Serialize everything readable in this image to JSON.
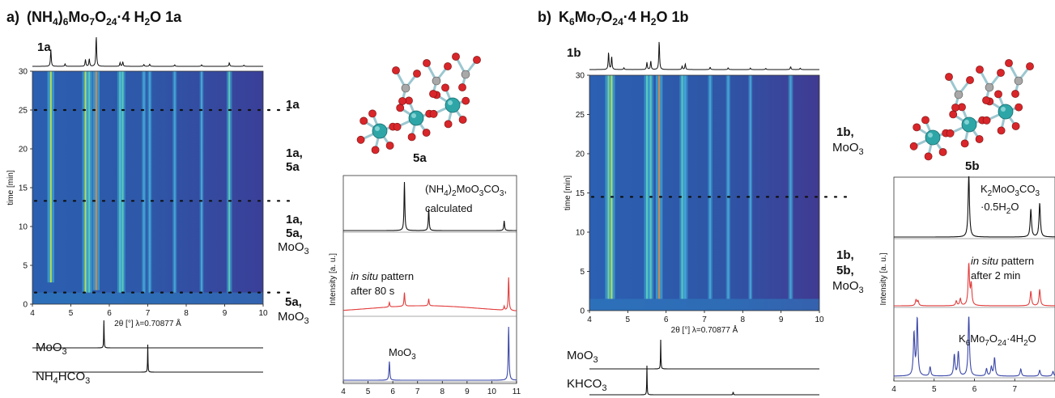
{
  "panels": [
    {
      "id": "a",
      "title_prefix": "a)",
      "title": "(NH4)6Mo7O24·4 H2O 1a",
      "top_trace_label": "1a",
      "stage_labels": [
        "1a",
        "1a, 5a",
        "1a, 5a, MoO3",
        "5a, MoO3"
      ],
      "structure_label": "5a",
      "ref_traces": [
        "MoO3",
        "NH4HCO3"
      ],
      "heatmap": {
        "xlabel": "2θ [°] λ=0.70877 Å",
        "ylabel": "time [min]",
        "xlim": [
          4,
          10
        ],
        "ylim": [
          0,
          30
        ],
        "xticks": [
          4,
          5,
          6,
          7,
          8,
          9,
          10
        ],
        "yticks": [
          0,
          5,
          10,
          15,
          20,
          25,
          30
        ],
        "stage_boundaries_min": [
          25,
          13.3,
          1.5
        ],
        "lines": [
          {
            "x": 4.48,
            "tstart": 2.8,
            "i": 1.0
          },
          {
            "x": 5.38,
            "tstart": 1.5,
            "i": 0.9
          },
          {
            "x": 5.48,
            "tstart": 1.5,
            "i": 0.75
          },
          {
            "x": 5.66,
            "tstart": 1.8,
            "i": 1.0,
            "hot": true
          },
          {
            "x": 6.28,
            "tstart": 1.5,
            "i": 0.65
          },
          {
            "x": 6.35,
            "tstart": 1.5,
            "i": 0.55
          },
          {
            "x": 6.9,
            "tstart": 1.5,
            "i": 0.3
          },
          {
            "x": 7.05,
            "tstart": 1.5,
            "i": 0.25
          },
          {
            "x": 7.7,
            "tstart": 1.5,
            "i": 0.25
          },
          {
            "x": 8.4,
            "tstart": 1.5,
            "i": 0.2
          },
          {
            "x": 9.12,
            "tstart": 1.5,
            "i": 0.6
          }
        ]
      },
      "top_trace": {
        "peaks": [
          [
            4.48,
            0.55
          ],
          [
            4.85,
            0.08
          ],
          [
            5.38,
            0.22
          ],
          [
            5.48,
            0.25
          ],
          [
            5.66,
            1.0
          ],
          [
            6.28,
            0.12
          ],
          [
            6.35,
            0.15
          ],
          [
            6.9,
            0.06
          ],
          [
            7.05,
            0.07
          ],
          [
            7.7,
            0.05
          ],
          [
            8.4,
            0.05
          ],
          [
            9.12,
            0.12
          ],
          [
            9.5,
            0.04
          ]
        ]
      },
      "ref_peaks": [
        {
          "x": 5.86,
          "h": 1.0
        },
        {
          "x": 7.0,
          "h": 1.0
        }
      ],
      "xrd": {
        "xlabel": "2θ [°]",
        "ylabel": "Intensity [a. u.]",
        "xlim": [
          4,
          11
        ],
        "xticks": [
          4,
          5,
          6,
          7,
          8,
          9,
          10,
          11
        ],
        "traces": [
          {
            "name": "(NH4)2MoO3CO3, calculated",
            "color": "#111111",
            "peaks": [
              [
                6.47,
                1.0
              ],
              [
                7.45,
                0.45
              ],
              [
                10.5,
                0.2
              ]
            ],
            "bg": "flat"
          },
          {
            "name": "in situ pattern after 80 s",
            "color": "#e23c3c",
            "peaks": [
              [
                5.86,
                0.12
              ],
              [
                6.47,
                0.35
              ],
              [
                7.45,
                0.18
              ],
              [
                10.5,
                0.1
              ],
              [
                10.68,
                0.85
              ]
            ],
            "bg": "hump"
          },
          {
            "name": "MoO3",
            "color": "#3b48a8",
            "peaks": [
              [
                5.86,
                0.35
              ],
              [
                10.68,
                1.0
              ]
            ],
            "bg": "flat"
          }
        ]
      }
    },
    {
      "id": "b",
      "title_prefix": "b)",
      "title": "K6Mo7O24·4 H2O 1b",
      "top_trace_label": "1b",
      "stage_labels": [
        "1b, MoO3",
        "1b, 5b, MoO3"
      ],
      "structure_label": "5b",
      "ref_traces": [
        "MoO3",
        "KHCO3"
      ],
      "heatmap": {
        "xlabel": "2θ [°] λ=0.70877 Å",
        "ylabel": "time [min]",
        "xlim": [
          4,
          10
        ],
        "ylim": [
          0,
          30
        ],
        "xticks": [
          4,
          5,
          6,
          7,
          8,
          9,
          10
        ],
        "yticks": [
          0,
          5,
          10,
          15,
          20,
          25,
          30
        ],
        "stage_boundaries_min": [
          14.5
        ],
        "lines": [
          {
            "x": 4.5,
            "tstart": 1.5,
            "i": 1.0
          },
          {
            "x": 4.58,
            "tstart": 1.5,
            "i": 0.95
          },
          {
            "x": 5.5,
            "tstart": 1.5,
            "i": 0.7
          },
          {
            "x": 5.6,
            "tstart": 1.5,
            "i": 0.6
          },
          {
            "x": 5.82,
            "tstart": 1.5,
            "i": 1.0,
            "hot": true
          },
          {
            "x": 6.42,
            "tstart": 1.5,
            "i": 0.55
          },
          {
            "x": 6.5,
            "tstart": 1.5,
            "i": 0.5
          },
          {
            "x": 7.15,
            "tstart": 1.5,
            "i": 0.35
          },
          {
            "x": 7.62,
            "tstart": 1.5,
            "i": 0.3
          },
          {
            "x": 8.2,
            "tstart": 1.5,
            "i": 0.2
          },
          {
            "x": 9.25,
            "tstart": 1.5,
            "i": 0.4
          }
        ]
      },
      "top_trace": {
        "peaks": [
          [
            4.5,
            0.6
          ],
          [
            4.58,
            0.45
          ],
          [
            4.9,
            0.06
          ],
          [
            5.5,
            0.25
          ],
          [
            5.6,
            0.3
          ],
          [
            5.82,
            1.0
          ],
          [
            6.42,
            0.12
          ],
          [
            6.5,
            0.2
          ],
          [
            7.15,
            0.08
          ],
          [
            7.62,
            0.06
          ],
          [
            8.2,
            0.05
          ],
          [
            8.6,
            0.04
          ],
          [
            9.25,
            0.1
          ],
          [
            9.5,
            0.05
          ]
        ]
      },
      "ref_peaks": [
        {
          "x": 5.86,
          "h": 1.0
        },
        {
          "x": 5.5,
          "h": 1.0
        },
        {
          "x": 7.75,
          "h": 0.12
        }
      ],
      "xrd": {
        "xlabel": "2θ [°]",
        "ylabel": "Intensity [a. u.]",
        "xlim": [
          4,
          8
        ],
        "xticks": [
          4,
          5,
          6,
          7
        ],
        "traces": [
          {
            "name": "K2MoO3CO3 ·0.5H2O",
            "color": "#111111",
            "peaks": [
              [
                5.86,
                1.0
              ],
              [
                7.4,
                0.45
              ],
              [
                7.62,
                0.55
              ]
            ],
            "bg": "flat"
          },
          {
            "name": "in situ pattern after 2 min",
            "color": "#e23c3c",
            "peaks": [
              [
                4.55,
                0.1
              ],
              [
                4.6,
                0.08
              ],
              [
                5.55,
                0.08
              ],
              [
                5.65,
                0.12
              ],
              [
                5.86,
                0.7
              ],
              [
                5.92,
                0.35
              ],
              [
                7.4,
                0.25
              ],
              [
                7.62,
                0.28
              ]
            ],
            "bg": "flat"
          },
          {
            "name": "K6Mo7O24·4H2O",
            "color": "#3b48a8",
            "peaks": [
              [
                4.5,
                0.7
              ],
              [
                4.58,
                0.95
              ],
              [
                4.9,
                0.15
              ],
              [
                5.5,
                0.35
              ],
              [
                5.6,
                0.4
              ],
              [
                5.86,
                1.0
              ],
              [
                6.3,
                0.12
              ],
              [
                6.42,
                0.15
              ],
              [
                6.5,
                0.3
              ],
              [
                7.15,
                0.12
              ],
              [
                7.62,
                0.1
              ],
              [
                7.95,
                0.08
              ]
            ],
            "bg": "flat"
          }
        ]
      }
    }
  ],
  "chart_data": [
    {
      "type": "heatmap",
      "title": "(NH4)6Mo7O24·4 H2O 1a",
      "xlabel": "2θ [°] λ=0.70877 Å",
      "ylabel": "time [min]",
      "xlim": [
        4,
        10
      ],
      "ylim": [
        0,
        30
      ],
      "reflection_positions_2theta": [
        4.48,
        5.38,
        5.48,
        5.66,
        6.28,
        6.35,
        6.9,
        7.05,
        7.7,
        8.4,
        9.12
      ],
      "stage_boundaries_min": [
        25,
        13.3,
        1.5
      ],
      "stages": [
        "1a",
        "1a, 5a",
        "1a, 5a, MoO3",
        "5a, MoO3"
      ]
    },
    {
      "type": "line",
      "xlabel": "2θ [°]",
      "ylabel": "Intensity [a. u.]",
      "xlim": [
        4,
        11
      ],
      "series": [
        {
          "name": "(NH4)2MoO3CO3, calculated",
          "peaks_2theta": [
            6.47,
            7.45,
            10.5
          ]
        },
        {
          "name": "in situ pattern after 80 s",
          "peaks_2theta": [
            5.86,
            6.47,
            7.45,
            10.5,
            10.68
          ]
        },
        {
          "name": "MoO3",
          "peaks_2theta": [
            5.86,
            10.68
          ]
        }
      ]
    },
    {
      "type": "heatmap",
      "title": "K6Mo7O24·4 H2O 1b",
      "xlabel": "2θ [°] λ=0.70877 Å",
      "ylabel": "time [min]",
      "xlim": [
        4,
        10
      ],
      "ylim": [
        0,
        30
      ],
      "reflection_positions_2theta": [
        4.5,
        4.58,
        5.5,
        5.6,
        5.82,
        6.42,
        6.5,
        7.15,
        7.62,
        8.2,
        9.25
      ],
      "stage_boundaries_min": [
        14.5
      ],
      "stages": [
        "1b, MoO3",
        "1b, 5b, MoO3"
      ]
    },
    {
      "type": "line",
      "xlabel": "2θ [°]",
      "ylabel": "Intensity [a. u.]",
      "xlim": [
        4,
        8
      ],
      "series": [
        {
          "name": "K2MoO3CO3 ·0.5H2O",
          "peaks_2theta": [
            5.86,
            7.4,
            7.62
          ]
        },
        {
          "name": "in situ pattern after 2 min",
          "peaks_2theta": [
            4.55,
            5.65,
            5.86,
            7.4,
            7.62
          ]
        },
        {
          "name": "K6Mo7O24·4H2O",
          "peaks_2theta": [
            4.58,
            5.5,
            5.6,
            5.86,
            6.5,
            7.15
          ]
        }
      ]
    }
  ]
}
